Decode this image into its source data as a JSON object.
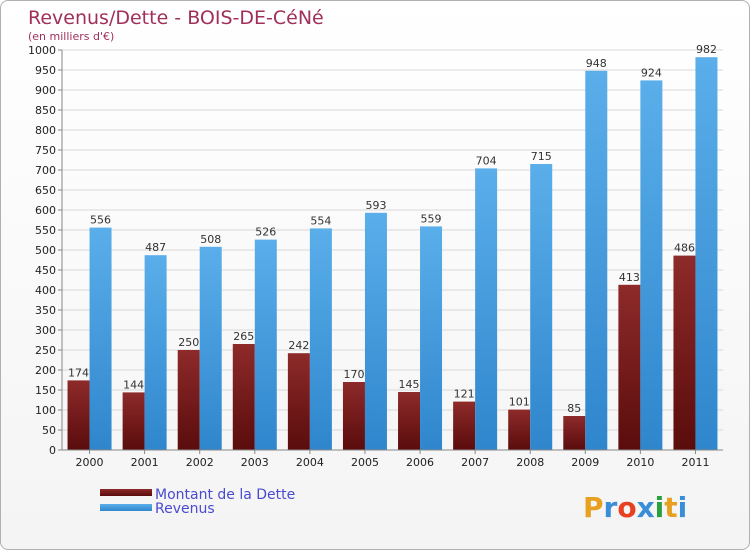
{
  "chart_data": {
    "type": "bar",
    "title": "Revenus/Dette - BOIS-DE-CéNé",
    "subtitle": "(en milliers d'€)",
    "categories": [
      "2000",
      "2001",
      "2002",
      "2003",
      "2004",
      "2005",
      "2006",
      "2007",
      "2008",
      "2009",
      "2010",
      "2011"
    ],
    "series": [
      {
        "name": "Montant de la Dette",
        "color": "#7a1818",
        "values": [
          174,
          144,
          250,
          265,
          242,
          170,
          145,
          121,
          101,
          85,
          413,
          486
        ]
      },
      {
        "name": "Revenus",
        "color": "#4aa0e2",
        "values": [
          556,
          487,
          508,
          526,
          554,
          593,
          559,
          704,
          715,
          948,
          924,
          982
        ]
      }
    ],
    "ylim": [
      0,
      1000
    ],
    "yticks": [
      0,
      50,
      100,
      150,
      200,
      250,
      300,
      350,
      400,
      450,
      500,
      550,
      600,
      650,
      700,
      750,
      800,
      850,
      900,
      950,
      1000
    ],
    "grid": true,
    "legend_position": "bottom-left"
  },
  "logo": {
    "letters": [
      "P",
      "r",
      "o",
      "x",
      "i",
      "t",
      "i"
    ],
    "colors": [
      "#e8a020",
      "#3a8ed8",
      "#e84020",
      "#3a8ed8",
      "#2aa040",
      "#e8a020",
      "#3a8ed8"
    ]
  }
}
